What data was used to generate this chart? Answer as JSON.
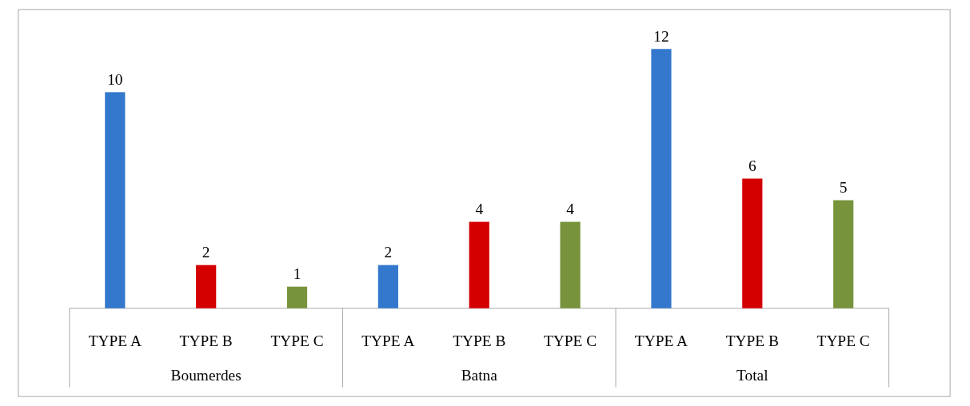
{
  "chart_data": {
    "type": "bar",
    "categories": [
      "Boumerdes",
      "Batna",
      "Total"
    ],
    "series": [
      {
        "name": "TYPE A",
        "color": "#3478ce",
        "values": [
          10,
          2,
          12
        ]
      },
      {
        "name": "TYPE B",
        "color": "#d40000",
        "values": [
          2,
          4,
          6
        ]
      },
      {
        "name": "TYPE C",
        "color": "#77933c",
        "values": [
          1,
          4,
          5
        ]
      }
    ],
    "data_labels": true,
    "legend": false,
    "grid": false
  }
}
